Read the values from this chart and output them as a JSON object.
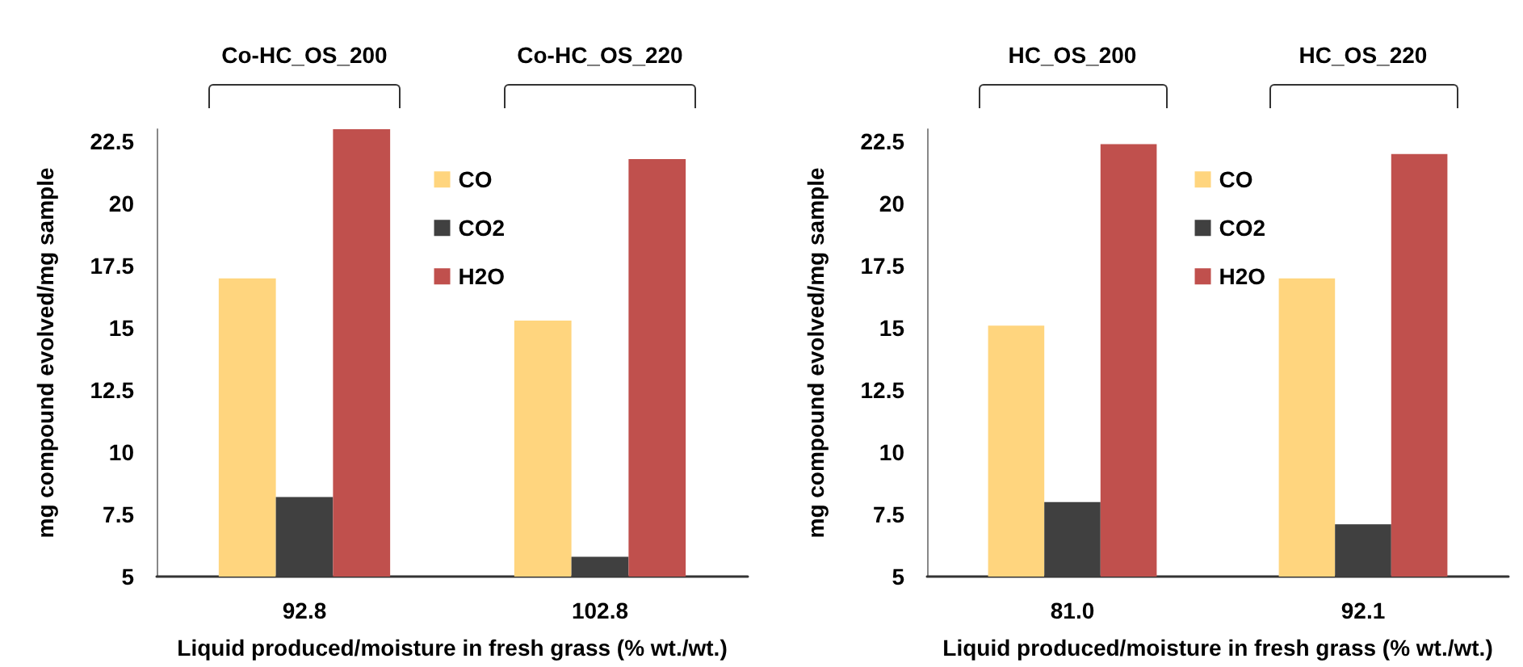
{
  "chart_data": [
    {
      "type": "bar",
      "xlabel": "Liquid produced/moisture in fresh grass (% wt./wt.)",
      "ylabel": "mg compound evolved/mg sample",
      "categories": [
        "92.8",
        "102.8"
      ],
      "series": [
        {
          "name": "CO",
          "color": "#ffd57e",
          "values": [
            17.0,
            15.3
          ]
        },
        {
          "name": "CO2",
          "color": "#404040",
          "values": [
            8.2,
            5.8
          ]
        },
        {
          "name": "H2O",
          "color": "#c0504d",
          "values": [
            23.0,
            21.8
          ]
        }
      ],
      "ylim": [
        5,
        23
      ],
      "yticks": [
        5,
        7.5,
        10,
        12.5,
        15,
        17.5,
        20,
        22.5
      ],
      "grid": false,
      "legend": "top",
      "annotations": [
        "Co-HC_OS_200",
        "Co-HC_OS_220"
      ]
    },
    {
      "type": "bar",
      "xlabel": "Liquid produced/moisture in fresh grass (% wt./wt.)",
      "ylabel": "mg compound evolved/mg sample",
      "categories": [
        "81.0",
        "92.1"
      ],
      "series": [
        {
          "name": "CO",
          "color": "#ffd57e",
          "values": [
            15.1,
            17.0
          ]
        },
        {
          "name": "CO2",
          "color": "#404040",
          "values": [
            8.0,
            7.1
          ]
        },
        {
          "name": "H2O",
          "color": "#c0504d",
          "values": [
            22.4,
            22.0
          ]
        }
      ],
      "ylim": [
        5,
        23
      ],
      "yticks": [
        5,
        7.5,
        10,
        12.5,
        15,
        17.5,
        20,
        22.5
      ],
      "grid": false,
      "legend": "top",
      "annotations": [
        "HC_OS_200",
        "HC_OS_220"
      ]
    }
  ]
}
